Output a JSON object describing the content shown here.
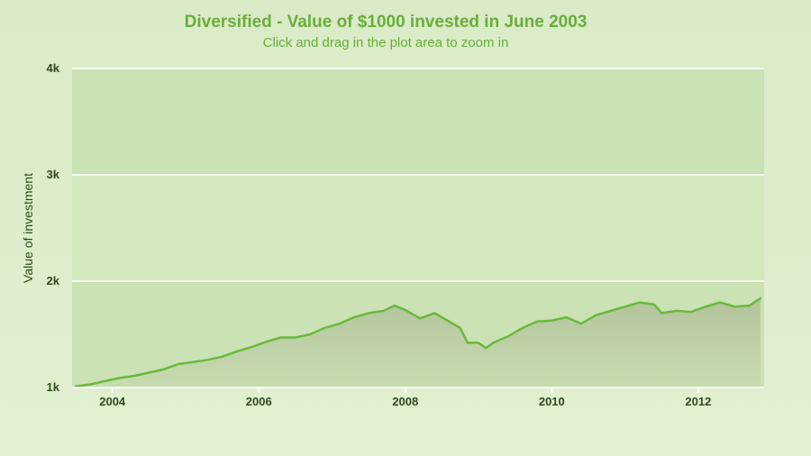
{
  "chart_data": {
    "type": "area",
    "title": "Diversified - Value of $1000 invested in June 2003",
    "subtitle": "Click and drag in the plot area to zoom in",
    "ylabel": "Value of investment",
    "xlabel": "",
    "ylim": [
      1000,
      4000
    ],
    "xlim": [
      2003.45,
      2012.9
    ],
    "yticks": [
      {
        "value": 1000,
        "label": "1k"
      },
      {
        "value": 2000,
        "label": "2k"
      },
      {
        "value": 3000,
        "label": "3k"
      },
      {
        "value": 4000,
        "label": "4k"
      }
    ],
    "xticks": [
      {
        "value": 2004,
        "label": "2004"
      },
      {
        "value": 2006,
        "label": "2006"
      },
      {
        "value": 2008,
        "label": "2008"
      },
      {
        "value": 2010,
        "label": "2010"
      },
      {
        "value": 2012,
        "label": "2012"
      }
    ],
    "grid": true,
    "legend": "none",
    "colors": {
      "line": "#6ab93c",
      "plot_band_light": "#d3e8bf",
      "plot_band_dark": "#cbe2b4",
      "grid": "#ffffff"
    },
    "series": [
      {
        "x": [
          2003.5,
          2003.7,
          2003.9,
          2004.1,
          2004.3,
          2004.5,
          2004.7,
          2004.9,
          2005.1,
          2005.3,
          2005.5,
          2005.7,
          2005.9,
          2006.1,
          2006.3,
          2006.5,
          2006.7,
          2006.9,
          2007.1,
          2007.3,
          2007.5,
          2007.7,
          2007.85,
          2008.0,
          2008.2,
          2008.4,
          2008.6,
          2008.75,
          2008.85,
          2009.0,
          2009.1,
          2009.2,
          2009.4,
          2009.6,
          2009.8,
          2010.0,
          2010.2,
          2010.4,
          2010.6,
          2010.8,
          2011.0,
          2011.2,
          2011.4,
          2011.5,
          2011.7,
          2011.9,
          2012.1,
          2012.3,
          2012.5,
          2012.7,
          2012.85
        ],
        "values": [
          1010,
          1030,
          1060,
          1090,
          1110,
          1140,
          1170,
          1220,
          1240,
          1260,
          1290,
          1340,
          1380,
          1430,
          1470,
          1470,
          1500,
          1560,
          1600,
          1660,
          1700,
          1720,
          1770,
          1730,
          1650,
          1700,
          1620,
          1560,
          1420,
          1420,
          1370,
          1420,
          1480,
          1560,
          1620,
          1630,
          1660,
          1600,
          1680,
          1720,
          1760,
          1800,
          1780,
          1700,
          1720,
          1710,
          1760,
          1800,
          1760,
          1770,
          1840
        ]
      }
    ]
  }
}
